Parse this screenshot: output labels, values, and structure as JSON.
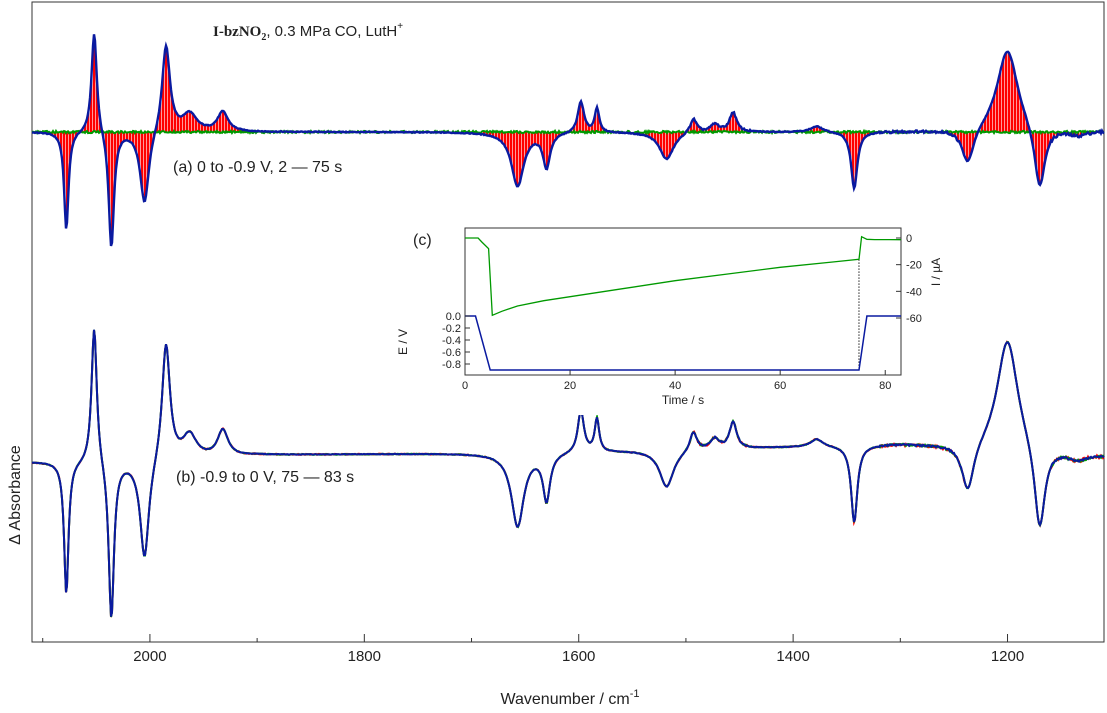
{
  "chart_data": {
    "type": "line",
    "title_parts": {
      "compound": "I-bzNO",
      "subscript": "2",
      "rest": ", 0.3 MPa CO, LutH",
      "superscript": "+"
    },
    "xlabel_base": "Wavenumber / cm",
    "xlabel_sup": "-1",
    "ylabel": "Δ Absorbance",
    "xlim": [
      2110,
      1110
    ],
    "x_reversed": true,
    "xticks": [
      2000,
      1800,
      1600,
      1400,
      1200
    ],
    "grid": false,
    "colors": {
      "red": "#ff0000",
      "green": "#009900",
      "blue": "#0a1aa0",
      "axis": "#333333"
    },
    "panels": [
      {
        "id": "a",
        "label": "(a) 0 to -0.9 V, 2 — 75 s",
        "baseline_offset": 0,
        "final_curve_color": "#0a1aa0",
        "initial_curve_color": "#009900",
        "fill_color": "#ff0000",
        "peaks": [
          {
            "x": 2078,
            "amp": -1.0,
            "w": 2.5
          },
          {
            "x": 2052,
            "amp": 1.05,
            "w": 3
          },
          {
            "x": 2036,
            "amp": -1.2,
            "w": 3
          },
          {
            "x": 2005,
            "amp": -0.75,
            "w": 5
          },
          {
            "x": 1985,
            "amp": 0.9,
            "w": 4.5
          },
          {
            "x": 1963,
            "amp": 0.18,
            "w": 8
          },
          {
            "x": 1932,
            "amp": 0.2,
            "w": 6
          },
          {
            "x": 1657,
            "amp": -0.55,
            "w": 7
          },
          {
            "x": 1630,
            "amp": -0.35,
            "w": 4
          },
          {
            "x": 1598,
            "amp": 0.32,
            "w": 3.5
          },
          {
            "x": 1583,
            "amp": 0.25,
            "w": 2.5
          },
          {
            "x": 1518,
            "amp": -0.28,
            "w": 8
          },
          {
            "x": 1493,
            "amp": 0.15,
            "w": 4
          },
          {
            "x": 1473,
            "amp": 0.08,
            "w": 5
          },
          {
            "x": 1456,
            "amp": 0.2,
            "w": 4
          },
          {
            "x": 1378,
            "amp": 0.06,
            "w": 7
          },
          {
            "x": 1343,
            "amp": -0.58,
            "w": 3.5
          },
          {
            "x": 1237,
            "amp": -0.37,
            "w": 7
          },
          {
            "x": 1200,
            "amp": 0.86,
            "w": 12
          },
          {
            "x": 1170,
            "amp": -0.65,
            "w": 6
          },
          {
            "x": 1135,
            "amp": -0.05,
            "w": 10
          }
        ]
      },
      {
        "id": "b",
        "label": "(b) -0.9 to 0 V, 75 — 83 s",
        "baseline_offset": 0,
        "final_curve_color": "#0a1aa0",
        "initial_curve_color": "#009900",
        "fill_color": "#ff0000",
        "peaks": [
          {
            "x": 2078,
            "amp": -1.0,
            "w": 2.5
          },
          {
            "x": 2052,
            "amp": 1.05,
            "w": 3
          },
          {
            "x": 2036,
            "amp": -1.2,
            "w": 3
          },
          {
            "x": 2005,
            "amp": -0.75,
            "w": 5
          },
          {
            "x": 1985,
            "amp": 0.9,
            "w": 4.5
          },
          {
            "x": 1963,
            "amp": 0.18,
            "w": 8
          },
          {
            "x": 1932,
            "amp": 0.2,
            "w": 6
          },
          {
            "x": 1657,
            "amp": -0.55,
            "w": 7
          },
          {
            "x": 1630,
            "amp": -0.35,
            "w": 4
          },
          {
            "x": 1598,
            "amp": 0.32,
            "w": 3.5
          },
          {
            "x": 1583,
            "amp": 0.25,
            "w": 2.5
          },
          {
            "x": 1518,
            "amp": -0.28,
            "w": 8
          },
          {
            "x": 1493,
            "amp": 0.15,
            "w": 4
          },
          {
            "x": 1473,
            "amp": 0.08,
            "w": 5
          },
          {
            "x": 1456,
            "amp": 0.2,
            "w": 4
          },
          {
            "x": 1378,
            "amp": 0.06,
            "w": 7
          },
          {
            "x": 1343,
            "amp": -0.58,
            "w": 3.5
          },
          {
            "x": 1237,
            "amp": -0.37,
            "w": 7
          },
          {
            "x": 1200,
            "amp": 0.86,
            "w": 12
          },
          {
            "x": 1170,
            "amp": -0.65,
            "w": 6
          },
          {
            "x": 1135,
            "amp": -0.05,
            "w": 10
          }
        ]
      }
    ],
    "inset": {
      "label": "(c)",
      "xlabel": "Time / s",
      "xlim": [
        0,
        83
      ],
      "xticks": [
        0,
        20,
        40,
        60,
        80
      ],
      "current": {
        "ylabel": "I / µA",
        "ylim": [
          -60,
          2
        ],
        "yticks": [
          0,
          -20,
          -40,
          -60
        ],
        "color": "#009900",
        "points": [
          [
            0,
            0
          ],
          [
            2.5,
            0
          ],
          [
            3.2,
            -3
          ],
          [
            4.5,
            -8
          ],
          [
            5.2,
            -58
          ],
          [
            7,
            -55
          ],
          [
            10,
            -51
          ],
          [
            15,
            -47
          ],
          [
            20,
            -44
          ],
          [
            30,
            -38
          ],
          [
            40,
            -32
          ],
          [
            50,
            -27
          ],
          [
            60,
            -22
          ],
          [
            70,
            -18
          ],
          [
            75,
            -16
          ],
          [
            75.5,
            1
          ],
          [
            76.5,
            -1
          ],
          [
            78,
            -1.2
          ],
          [
            83,
            -1.3
          ]
        ]
      },
      "potential": {
        "ylabel": "E / V",
        "ylim": [
          -0.9,
          0.0
        ],
        "yticks": [
          0.0,
          -0.2,
          -0.4,
          -0.6,
          -0.8
        ],
        "color": "#0a1aa0",
        "points": [
          [
            0,
            0
          ],
          [
            2.0,
            0
          ],
          [
            4.8,
            -0.9
          ],
          [
            75,
            -0.9
          ],
          [
            76.5,
            0
          ],
          [
            83,
            0
          ]
        ]
      },
      "vline_x": 75
    }
  }
}
